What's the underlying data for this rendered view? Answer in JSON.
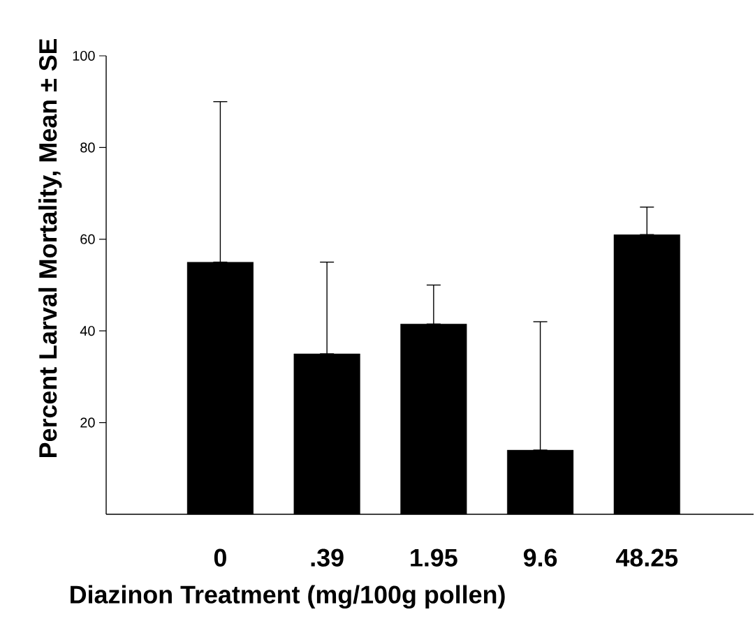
{
  "chart_data": {
    "type": "bar",
    "xlabel": "Diazinon Treatment (mg/100g pollen)",
    "ylabel": "Percent Larval Mortality, Mean ± SE",
    "categories": [
      "0",
      ".39",
      "1.95",
      "9.6",
      "48.25"
    ],
    "values": [
      55,
      35,
      41.5,
      14,
      61
    ],
    "errors": [
      [
        55,
        90
      ],
      [
        35,
        55
      ],
      [
        41.5,
        50
      ],
      [
        14,
        42
      ],
      [
        61,
        67
      ]
    ],
    "color": "#000000",
    "ylim": [
      0,
      100
    ],
    "yticks": [
      20,
      40,
      60,
      80,
      100
    ],
    "grid": false
  }
}
